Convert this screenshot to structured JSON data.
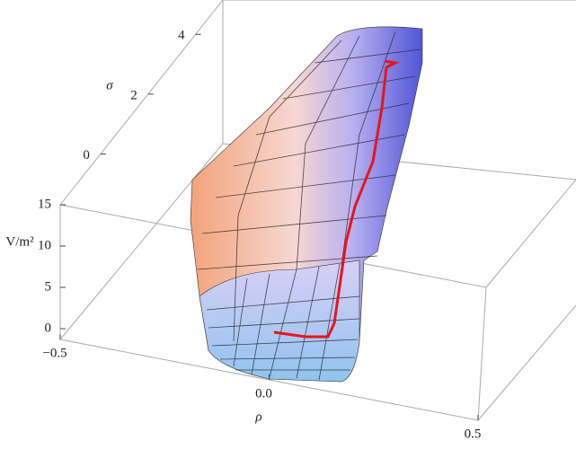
{
  "chart_data": {
    "type": "surface3d",
    "xlabel": "ρ",
    "ylabel": "σ",
    "zlabel": "V/m²",
    "xlim": [
      -0.5,
      0.5
    ],
    "xticks": [
      {
        "value": -0.5,
        "label": "−0.5"
      },
      {
        "value": 0,
        "label": "0.0"
      },
      0.5
    ],
    "ylim": [
      -1.7,
      5.15
    ],
    "yticks": [
      0,
      2,
      4
    ],
    "zlim": [
      -1.3,
      15
    ],
    "zticks": [
      0,
      5,
      10,
      15
    ]
  }
}
